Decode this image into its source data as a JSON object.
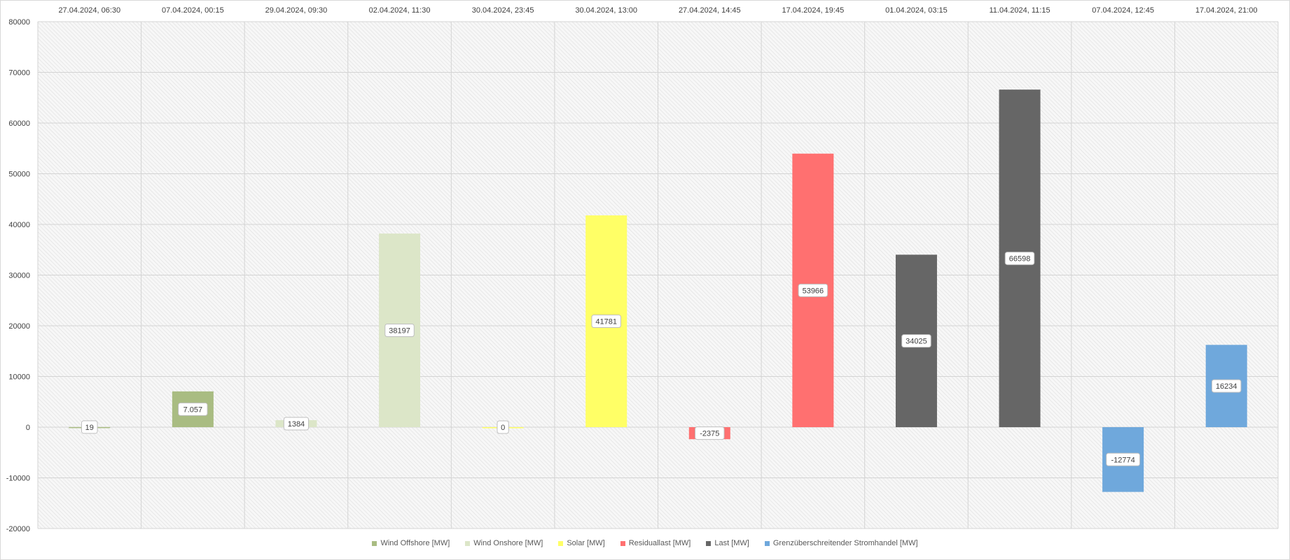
{
  "chart_data": {
    "type": "bar",
    "categories": [
      "27.04.2024, 06:30",
      "07.04.2024, 00:15",
      "29.04.2024, 09:30",
      "02.04.2024, 11:30",
      "30.04.2024, 23:45",
      "30.04.2024, 13:00",
      "27.04.2024, 14:45",
      "17.04.2024, 19:45",
      "01.04.2024, 03:15",
      "11.04.2024, 11:15",
      "07.04.2024, 12:45",
      "17.04.2024, 21:00"
    ],
    "values": [
      19,
      7057,
      1384,
      38197,
      0,
      41781,
      -2375,
      53966,
      34025,
      66598,
      -12774,
      16234
    ],
    "data_labels": [
      "19",
      "7.057",
      "1384",
      "38197",
      "0",
      "41781",
      "-2375",
      "53966",
      "34025",
      "66598",
      "-12774",
      "16234"
    ],
    "bar_series_index": [
      0,
      0,
      1,
      1,
      2,
      2,
      3,
      3,
      4,
      4,
      5,
      5
    ],
    "series": [
      {
        "name": "Wind Offshore [MW]",
        "color": "#a9bc82"
      },
      {
        "name": "Wind Onshore [MW]",
        "color": "#dce6c8"
      },
      {
        "name": "Solar [MW]",
        "color": "#ffff66"
      },
      {
        "name": "Residuallast [MW]",
        "color": "#ff7070"
      },
      {
        "name": "Last [MW]",
        "color": "#666666"
      },
      {
        "name": "Grenzüberschreitender Stromhandel [MW]",
        "color": "#6fa8dc"
      }
    ],
    "y_ticks": [
      80000,
      70000,
      60000,
      50000,
      40000,
      30000,
      20000,
      10000,
      0,
      -10000,
      -20000
    ],
    "y_tick_labels": [
      "80000",
      "70000",
      "60000",
      "50000",
      "40000",
      "30000",
      "20000",
      "10000",
      "0",
      "-10000",
      "-20000"
    ],
    "ylim": [
      -20000,
      80000
    ],
    "grid": true,
    "legend_position": "bottom",
    "x_labels_position": "top",
    "title": "",
    "xlabel": "",
    "ylabel": ""
  }
}
